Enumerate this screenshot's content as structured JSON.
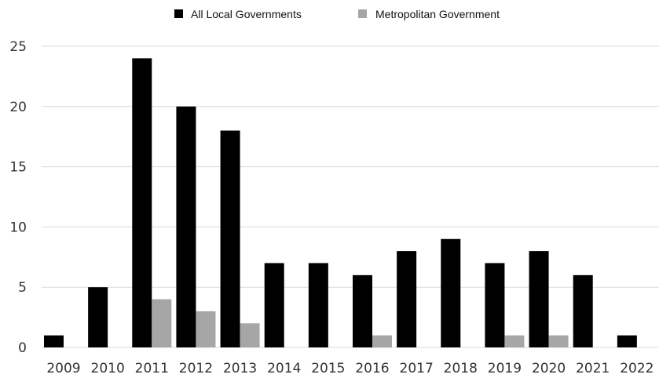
{
  "chart_data": {
    "type": "bar",
    "categories": [
      "2009",
      "2010",
      "2011",
      "2012",
      "2013",
      "2014",
      "2015",
      "2016",
      "2017",
      "2018",
      "2019",
      "2020",
      "2021",
      "2022"
    ],
    "series": [
      {
        "name": "All Local Governments",
        "color": "#000000",
        "values": [
          1,
          5,
          24,
          20,
          18,
          7,
          7,
          6,
          8,
          9,
          7,
          8,
          6,
          1
        ]
      },
      {
        "name": "Metropolitan Government",
        "color": "#a6a6a6",
        "values": [
          0,
          0,
          4,
          3,
          2,
          0,
          0,
          1,
          0,
          0,
          1,
          1,
          0,
          0
        ]
      }
    ],
    "title": "",
    "xlabel": "",
    "ylabel": "",
    "ylim": [
      0,
      25
    ],
    "yticks": [
      0,
      5,
      10,
      15,
      20,
      25
    ],
    "grid": true,
    "legend_position": "top-center",
    "gridline_color": "#d9d9d9"
  }
}
